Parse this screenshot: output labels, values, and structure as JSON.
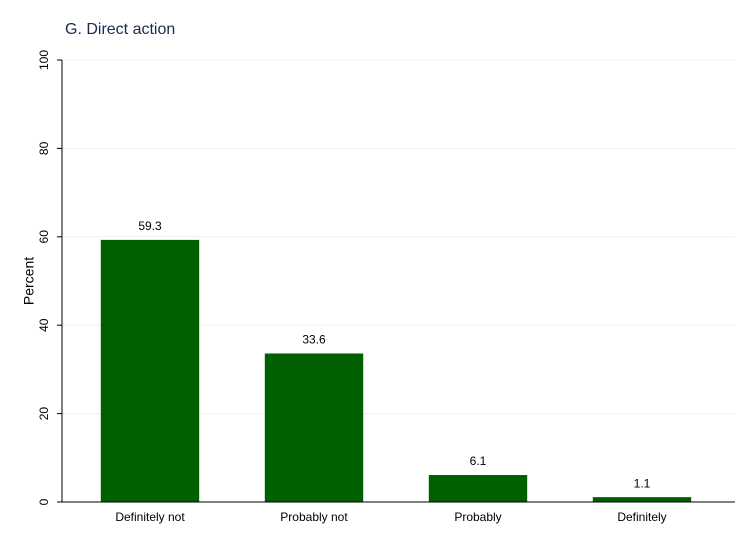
{
  "chart_data": {
    "type": "bar",
    "title": "G. Direct action",
    "y_label": "Percent",
    "categories": [
      "Definitely not",
      "Probably not",
      "Probably",
      "Definitely"
    ],
    "values": [
      59.3,
      33.6,
      6.1,
      1.1
    ],
    "color": "#006000",
    "ylim": [
      0,
      100
    ],
    "yticks": [
      0,
      20,
      40,
      60,
      80,
      100
    ],
    "grid": true
  }
}
